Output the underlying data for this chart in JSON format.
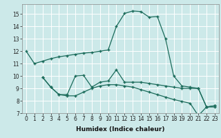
{
  "background_color": "#cce9e9",
  "grid_color": "#ffffff",
  "line_color": "#1a6b5a",
  "xlabel": "Humidex (Indice chaleur)",
  "ylim": [
    7,
    15.8
  ],
  "xlim": [
    -0.5,
    23.5
  ],
  "yticks": [
    7,
    8,
    9,
    10,
    11,
    12,
    13,
    14,
    15
  ],
  "xticks": [
    0,
    1,
    2,
    3,
    4,
    5,
    6,
    7,
    8,
    9,
    10,
    11,
    12,
    13,
    14,
    15,
    16,
    17,
    18,
    19,
    20,
    21,
    22,
    23
  ],
  "series1": {
    "x": [
      0,
      1,
      2,
      3,
      4,
      5,
      6,
      7,
      8,
      9,
      10,
      11,
      12,
      13,
      14,
      15,
      16,
      17,
      18,
      19,
      20,
      21,
      22,
      23
    ],
    "y": [
      12,
      11,
      11.2,
      11.4,
      11.55,
      11.65,
      11.75,
      11.85,
      11.9,
      12.0,
      12.1,
      14.0,
      15.05,
      15.25,
      15.2,
      14.75,
      14.8,
      13.0,
      10.0,
      9.2,
      9.1,
      9.0,
      7.5,
      7.5
    ]
  },
  "series2": {
    "x": [
      2,
      3,
      4,
      5,
      6,
      7,
      8,
      9,
      10,
      11,
      12,
      13,
      14,
      15,
      16,
      17,
      18,
      19,
      20,
      21,
      22,
      23
    ],
    "y": [
      9.9,
      9.1,
      8.5,
      8.5,
      10.0,
      10.05,
      9.1,
      9.5,
      9.6,
      10.5,
      9.5,
      9.5,
      9.5,
      9.4,
      9.3,
      9.2,
      9.1,
      9.0,
      9.0,
      9.0,
      7.5,
      7.6
    ]
  },
  "series3": {
    "x": [
      2,
      3,
      4,
      5,
      6,
      7,
      8,
      9,
      10,
      11,
      12,
      13,
      14,
      15,
      16,
      17,
      18,
      19,
      20,
      21,
      22,
      23
    ],
    "y": [
      9.9,
      9.1,
      8.5,
      8.4,
      8.4,
      8.7,
      9.0,
      9.2,
      9.3,
      9.3,
      9.2,
      9.1,
      8.9,
      8.7,
      8.5,
      8.3,
      8.1,
      7.95,
      7.8,
      6.8,
      7.5,
      7.6
    ]
  },
  "tick_fontsize": 5.5,
  "xlabel_fontsize": 6.5
}
